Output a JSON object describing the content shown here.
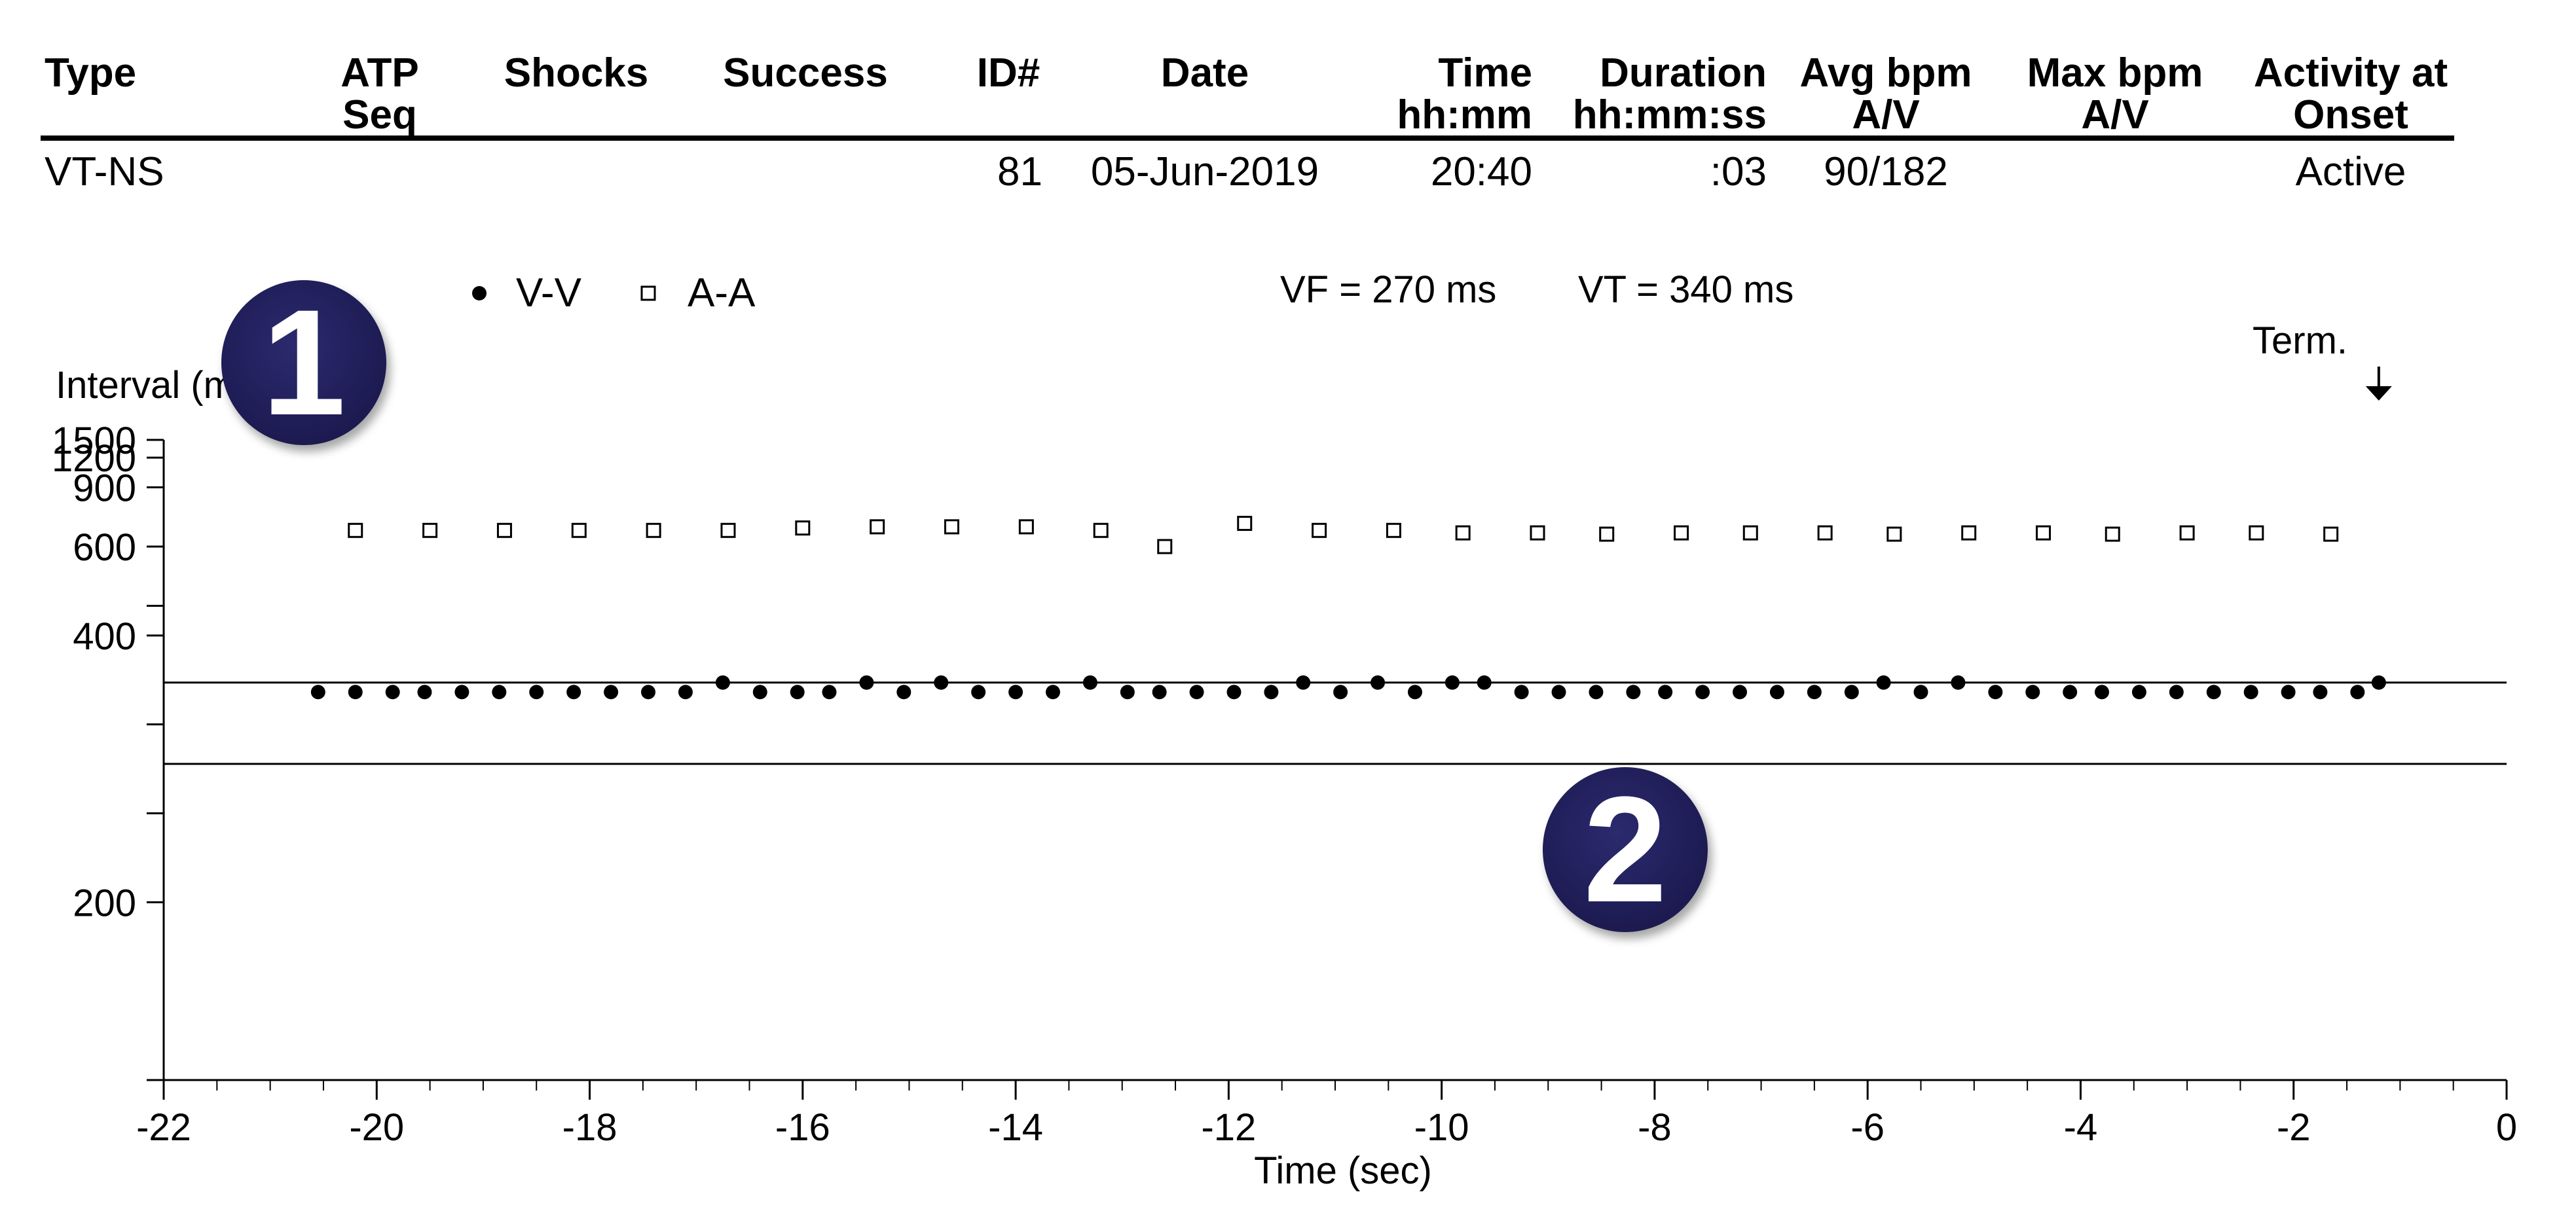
{
  "table": {
    "headers": [
      {
        "key": "type",
        "l1": "",
        "l2": "Type"
      },
      {
        "key": "atp_seq",
        "l1": "ATP",
        "l2": "Seq"
      },
      {
        "key": "shocks",
        "l1": "",
        "l2": "Shocks"
      },
      {
        "key": "success",
        "l1": "",
        "l2": "Success"
      },
      {
        "key": "id",
        "l1": "",
        "l2": "ID#"
      },
      {
        "key": "date",
        "l1": "",
        "l2": "Date"
      },
      {
        "key": "time",
        "l1": "Time",
        "l2": "hh:mm"
      },
      {
        "key": "duration",
        "l1": "Duration",
        "l2": "hh:mm:ss"
      },
      {
        "key": "avg_bpm",
        "l1": "Avg bpm",
        "l2": "A/V"
      },
      {
        "key": "max_bpm",
        "l1": "Max bpm",
        "l2": "A/V"
      },
      {
        "key": "activity",
        "l1": "Activity at",
        "l2": "Onset"
      }
    ],
    "row": {
      "type": "VT-NS",
      "atp_seq": "",
      "shocks": "",
      "success": "",
      "id": "81",
      "date": "05-Jun-2019",
      "time": "20:40",
      "duration": ":03",
      "avg_bpm": "90/182",
      "max_bpm": "",
      "activity": "Active"
    }
  },
  "badges": [
    "1",
    "2"
  ],
  "chart_data": {
    "type": "scatter",
    "legend": [
      {
        "name": "V-V",
        "marker": "filled-dot"
      },
      {
        "name": "A-A",
        "marker": "open-square"
      }
    ],
    "thresholds": [
      {
        "label": "VF = 270 ms",
        "value": 270
      },
      {
        "label": "VT = 340 ms",
        "value": 340
      }
    ],
    "annotation": {
      "label": "Term.",
      "x": -1.2
    },
    "ylabel": "Interval (ms)",
    "xlabel": "Time (sec)",
    "xlim": [
      -22,
      0
    ],
    "x_ticks": [
      -22,
      -20,
      -18,
      -16,
      -14,
      -12,
      -10,
      -8,
      -6,
      -4,
      -2,
      0
    ],
    "y_scale": "reciprocal",
    "ylim": [
      150,
      1500
    ],
    "y_ticks": [
      200,
      400,
      600,
      900,
      1200,
      1500
    ],
    "y_minor_ticks": [
      150,
      240,
      300,
      450,
      1500
    ],
    "series": [
      {
        "name": "V-V",
        "points": [
          [
            -20.55,
            330
          ],
          [
            -20.2,
            330
          ],
          [
            -19.85,
            330
          ],
          [
            -19.55,
            330
          ],
          [
            -19.2,
            330
          ],
          [
            -18.85,
            330
          ],
          [
            -18.5,
            330
          ],
          [
            -18.15,
            330
          ],
          [
            -17.8,
            330
          ],
          [
            -17.45,
            330
          ],
          [
            -17.1,
            330
          ],
          [
            -16.75,
            340
          ],
          [
            -16.4,
            330
          ],
          [
            -16.05,
            330
          ],
          [
            -15.75,
            330
          ],
          [
            -15.4,
            340
          ],
          [
            -15.05,
            330
          ],
          [
            -14.7,
            340
          ],
          [
            -14.35,
            330
          ],
          [
            -14.0,
            330
          ],
          [
            -13.65,
            330
          ],
          [
            -13.3,
            340
          ],
          [
            -12.95,
            330
          ],
          [
            -12.65,
            330
          ],
          [
            -12.3,
            330
          ],
          [
            -11.95,
            330
          ],
          [
            -11.6,
            330
          ],
          [
            -11.3,
            340
          ],
          [
            -10.95,
            330
          ],
          [
            -10.6,
            340
          ],
          [
            -10.25,
            330
          ],
          [
            -9.9,
            340
          ],
          [
            -9.6,
            340
          ],
          [
            -9.25,
            330
          ],
          [
            -8.9,
            330
          ],
          [
            -8.55,
            330
          ],
          [
            -8.2,
            330
          ],
          [
            -7.9,
            330
          ],
          [
            -7.55,
            330
          ],
          [
            -7.2,
            330
          ],
          [
            -6.85,
            330
          ],
          [
            -6.5,
            330
          ],
          [
            -6.15,
            330
          ],
          [
            -5.85,
            340
          ],
          [
            -5.5,
            330
          ],
          [
            -5.15,
            340
          ],
          [
            -4.8,
            330
          ],
          [
            -4.45,
            330
          ],
          [
            -4.1,
            330
          ],
          [
            -3.8,
            330
          ],
          [
            -3.45,
            330
          ],
          [
            -3.1,
            330
          ],
          [
            -2.75,
            330
          ],
          [
            -2.4,
            330
          ],
          [
            -2.05,
            330
          ],
          [
            -1.75,
            330
          ],
          [
            -1.4,
            330
          ],
          [
            -1.2,
            340
          ]
        ]
      },
      {
        "name": "A-A",
        "points": [
          [
            -20.2,
            660
          ],
          [
            -19.5,
            660
          ],
          [
            -18.8,
            660
          ],
          [
            -18.1,
            660
          ],
          [
            -17.4,
            660
          ],
          [
            -16.7,
            660
          ],
          [
            -16.0,
            670
          ],
          [
            -15.3,
            675
          ],
          [
            -14.6,
            675
          ],
          [
            -13.9,
            675
          ],
          [
            -13.2,
            660
          ],
          [
            -12.6,
            600
          ],
          [
            -11.85,
            690
          ],
          [
            -11.15,
            660
          ],
          [
            -10.45,
            660
          ],
          [
            -9.8,
            650
          ],
          [
            -9.1,
            650
          ],
          [
            -8.45,
            645
          ],
          [
            -7.75,
            650
          ],
          [
            -7.1,
            650
          ],
          [
            -6.4,
            650
          ],
          [
            -5.75,
            645
          ],
          [
            -5.05,
            650
          ],
          [
            -4.35,
            650
          ],
          [
            -3.7,
            645
          ],
          [
            -3.0,
            650
          ],
          [
            -2.35,
            650
          ],
          [
            -1.65,
            645
          ]
        ]
      }
    ]
  }
}
